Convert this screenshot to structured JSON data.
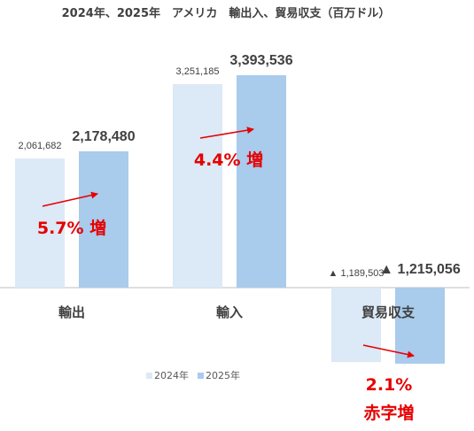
{
  "chart_data": {
    "type": "bar",
    "title": "2024年、2025年　アメリカ　輸出入、貿易収支（百万ドル）",
    "categories": [
      "輸出",
      "輸入",
      "貿易収支"
    ],
    "series": [
      {
        "name": "2024年",
        "values": [
          2061682,
          3251185,
          -1189503
        ],
        "color": "#dce9f6"
      },
      {
        "name": "2025年",
        "values": [
          2178480,
          3393536,
          -1215056
        ],
        "color": "#a9cbec"
      }
    ],
    "data_labels": {
      "2024年": [
        "2,061,682",
        "3,251,185",
        "▲ 1,189,503"
      ],
      "2025年": [
        "2,178,480",
        "3,393,536",
        "▲ 1,215,056"
      ]
    },
    "annotations": [
      {
        "category": "輸出",
        "lines": [
          "5.7% 増"
        ]
      },
      {
        "category": "輸入",
        "lines": [
          "4.4% 増"
        ]
      },
      {
        "category": "貿易収支",
        "lines": [
          "2.1%",
          "赤字増"
        ]
      }
    ],
    "annotation_color": "#e60000",
    "legend": "bottom",
    "grid": false
  }
}
